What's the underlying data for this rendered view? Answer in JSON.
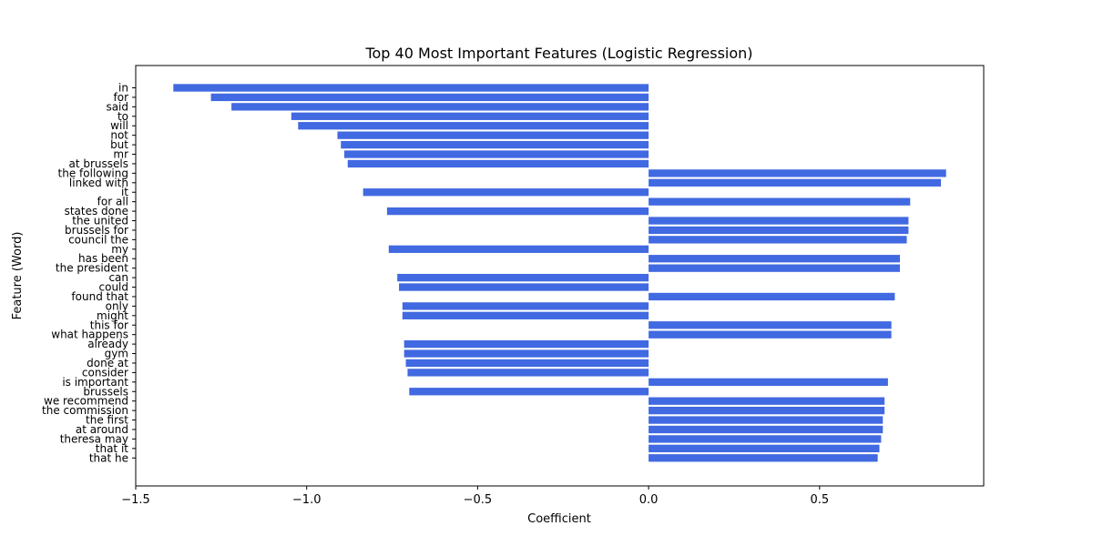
{
  "chart_data": {
    "type": "bar",
    "orientation": "horizontal",
    "title": "Top 40 Most Important Features (Logistic Regression)",
    "xlabel": "Coefficient",
    "ylabel": "Feature (Word)",
    "xlim": [
      -1.5,
      0.98
    ],
    "xticks": [
      -1.5,
      -1.0,
      -0.5,
      0.0,
      0.5
    ],
    "xtick_labels": [
      "−1.5",
      "−1.0",
      "−0.5",
      "0.0",
      "0.5"
    ],
    "grid": false,
    "bar_color": "#4169e1",
    "categories": [
      "in",
      "for",
      "said",
      "to",
      "will",
      "not",
      "but",
      "mr",
      "at brussels",
      "the following",
      "linked with",
      "it",
      "for all",
      "states done",
      "the united",
      "brussels for",
      "council the",
      "my",
      "has been",
      "the president",
      "can",
      "could",
      "found that",
      "only",
      "might",
      "this for",
      "what happens",
      "already",
      "gym",
      "done at",
      "consider",
      "is important",
      "brussels",
      "we recommend",
      "the commission",
      "the first",
      "at around",
      "theresa may",
      "that it",
      "that he"
    ],
    "values": [
      -1.39,
      -1.28,
      -1.22,
      -1.045,
      -1.025,
      -0.91,
      -0.9,
      -0.89,
      -0.88,
      0.87,
      0.855,
      -0.835,
      0.765,
      -0.765,
      0.76,
      0.76,
      0.755,
      -0.76,
      0.735,
      0.735,
      -0.735,
      -0.73,
      0.72,
      -0.72,
      -0.72,
      0.71,
      0.71,
      -0.715,
      -0.715,
      -0.71,
      -0.705,
      0.7,
      -0.7,
      0.69,
      0.69,
      0.685,
      0.685,
      0.68,
      0.675,
      0.67
    ]
  }
}
